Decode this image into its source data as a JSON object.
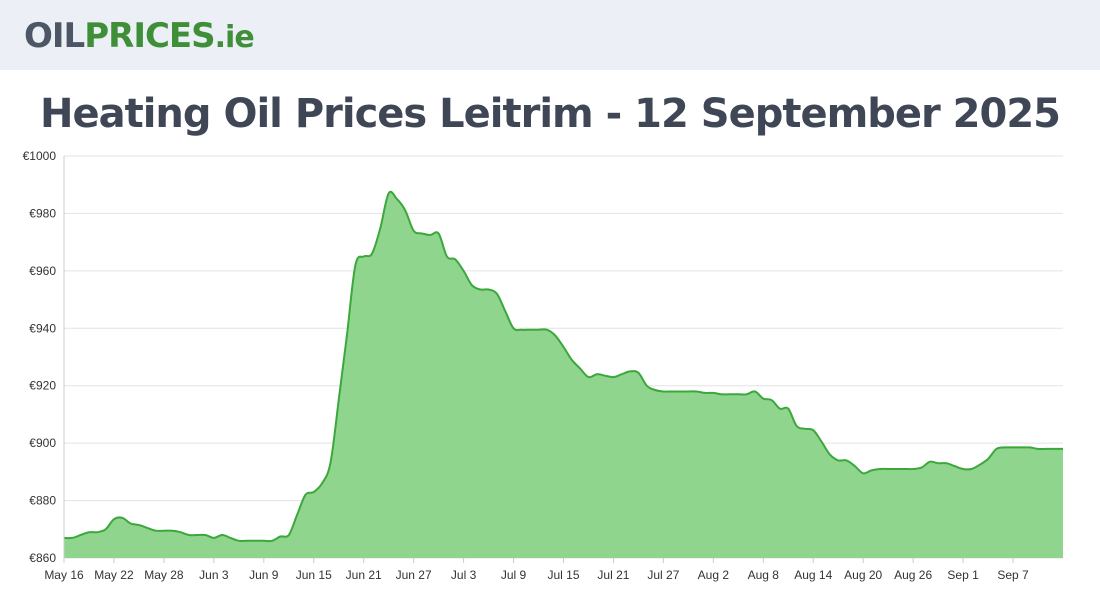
{
  "site": {
    "logo_part1": "OIL",
    "logo_part2": "PRICES",
    "logo_part3": ".ie"
  },
  "colors": {
    "header_bg": "#eceff5",
    "line": "#3aa83a",
    "fill": "#90d58e",
    "grid": "#e3e3e3",
    "title": "#3f4756"
  },
  "chart_data": {
    "type": "area",
    "title": "Heating Oil Prices Leitrim - 12 September 2025",
    "xlabel": "",
    "ylabel": "",
    "ylim": [
      860,
      1000
    ],
    "yticks": [
      "€1000",
      "€980",
      "€960",
      "€940",
      "€920",
      "€900",
      "€880",
      "€860"
    ],
    "xticks": [
      "May 16",
      "May 22",
      "May 28",
      "Jun 3",
      "Jun 9",
      "Jun 15",
      "Jun 21",
      "Jun 27",
      "Jul 3",
      "Jul 9",
      "Jul 15",
      "Jul 21",
      "Jul 27",
      "Aug 2",
      "Aug 8",
      "Aug 14",
      "Aug 20",
      "Aug 26",
      "Sep 1",
      "Sep 7"
    ],
    "grid": true,
    "legend": "none",
    "series": [
      {
        "values": [
          867,
          867,
          868,
          869,
          869,
          870,
          873.5,
          874,
          872,
          871.5,
          870.5,
          869.5,
          869.5,
          869.5,
          869,
          868,
          868,
          868,
          867,
          868,
          867,
          866,
          866,
          866,
          866,
          866,
          867.5,
          868,
          875,
          882,
          883,
          886,
          893,
          915,
          938,
          962,
          965,
          966,
          975,
          987,
          985,
          981,
          974,
          973,
          972.5,
          973,
          965,
          964,
          960,
          955,
          953.5,
          953.5,
          952,
          946,
          940,
          939.5,
          939.5,
          939.5,
          939.5,
          937.5,
          933.5,
          929,
          926,
          923,
          924,
          923.5,
          923,
          924,
          925,
          924.5,
          920,
          918.5,
          918,
          918,
          918,
          918,
          918,
          917.5,
          917.5,
          917,
          917,
          917,
          917,
          918,
          915.5,
          915,
          912,
          912,
          906,
          905,
          904.5,
          900.5,
          896,
          894,
          894,
          892,
          889.5,
          890.5,
          891,
          891,
          891,
          891,
          891,
          891.5,
          893.5,
          893,
          893,
          892,
          891,
          891,
          892.5,
          894.5,
          898,
          898.5,
          898.5,
          898.5,
          898.5,
          898,
          898,
          898,
          898
        ]
      }
    ]
  }
}
